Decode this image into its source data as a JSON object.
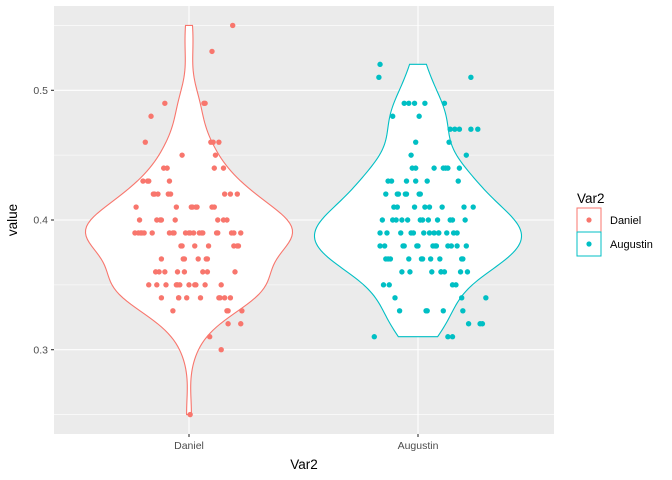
{
  "chart_data": {
    "type": "violin+jitter",
    "xlabel": "Var2",
    "ylabel": "value",
    "categories": [
      "Daniel",
      "Augustin"
    ],
    "y_ticks": [
      0.3,
      0.4,
      0.5
    ],
    "y_tick_labels": [
      "0.3",
      "0.4",
      "0.5"
    ],
    "ylim": [
      0.235,
      0.565
    ],
    "legend": {
      "title": "Var2",
      "placement": "right",
      "entries": [
        "Daniel",
        "Augustin"
      ]
    },
    "colors": {
      "Daniel": "#F8766D",
      "Augustin": "#00BFC4",
      "panel_background": "#EBEBEB",
      "grid": "#FFFFFF"
    },
    "series": [
      {
        "name": "Daniel",
        "violin_range": [
          0.25,
          0.55
        ],
        "points": [
          [
            -0.47,
            0.39
          ],
          [
            -0.42,
            0.39
          ],
          [
            -0.4,
            0.43
          ],
          [
            -0.36,
            0.43
          ],
          [
            -0.33,
            0.48
          ],
          [
            -0.3,
            0.42
          ],
          [
            -0.27,
            0.42
          ],
          [
            -0.24,
            0.4
          ],
          [
            -0.21,
            0.49
          ],
          [
            -0.19,
            0.44
          ],
          [
            -0.17,
            0.43
          ],
          [
            -0.14,
            0.39
          ],
          [
            -0.12,
            0.4
          ],
          [
            -0.1,
            0.35
          ],
          [
            -0.08,
            0.35
          ],
          [
            -0.06,
            0.45
          ],
          [
            -0.03,
            0.39
          ],
          [
            0.0,
            0.39
          ],
          [
            0.02,
            0.41
          ],
          [
            0.05,
            0.38
          ],
          [
            0.07,
            0.41
          ],
          [
            0.1,
            0.34
          ],
          [
            0.13,
            0.49
          ],
          [
            0.15,
            0.37
          ],
          [
            0.18,
            0.31
          ],
          [
            0.21,
            0.46
          ],
          [
            0.24,
            0.39
          ],
          [
            0.26,
            0.34
          ],
          [
            0.28,
            0.3
          ],
          [
            0.31,
            0.42
          ],
          [
            0.34,
            0.33
          ],
          [
            0.37,
            0.39
          ],
          [
            0.4,
            0.36
          ],
          [
            0.43,
            0.38
          ],
          [
            0.46,
            0.33
          ],
          [
            -0.46,
            0.41
          ],
          [
            -0.43,
            0.4
          ],
          [
            -0.41,
            0.39
          ],
          [
            -0.38,
            0.46
          ],
          [
            -0.35,
            0.43
          ],
          [
            -0.32,
            0.39
          ],
          [
            -0.29,
            0.36
          ],
          [
            -0.26,
            0.36
          ],
          [
            -0.24,
            0.37
          ],
          [
            -0.22,
            0.44
          ],
          [
            -0.2,
            0.35
          ],
          [
            -0.18,
            0.42
          ],
          [
            -0.16,
            0.42
          ],
          [
            -0.13,
            0.39
          ],
          [
            -0.11,
            0.35
          ],
          [
            -0.09,
            0.34
          ],
          [
            -0.07,
            0.38
          ],
          [
            -0.05,
            0.37
          ],
          [
            -0.02,
            0.34
          ],
          [
            0.01,
            0.39
          ],
          [
            0.03,
            0.41
          ],
          [
            0.06,
            0.35
          ],
          [
            0.08,
            0.37
          ],
          [
            0.11,
            0.39
          ],
          [
            0.14,
            0.49
          ],
          [
            0.16,
            0.37
          ],
          [
            0.19,
            0.46
          ],
          [
            0.22,
            0.44
          ],
          [
            0.25,
            0.4
          ],
          [
            0.27,
            0.34
          ],
          [
            0.3,
            0.44
          ],
          [
            0.33,
            0.33
          ],
          [
            0.36,
            0.34
          ],
          [
            0.39,
            0.39
          ],
          [
            0.42,
            0.42
          ],
          [
            0.45,
            0.32
          ],
          [
            -0.44,
            0.39
          ],
          [
            -0.39,
            0.39
          ],
          [
            -0.35,
            0.35
          ],
          [
            -0.31,
            0.42
          ],
          [
            -0.28,
            0.4
          ],
          [
            -0.25,
            0.4
          ],
          [
            -0.21,
            0.36
          ],
          [
            -0.17,
            0.39
          ],
          [
            -0.14,
            0.33
          ],
          [
            -0.11,
            0.41
          ],
          [
            -0.09,
            0.34
          ],
          [
            -0.06,
            0.38
          ],
          [
            -0.04,
            0.36
          ],
          [
            0.0,
            0.35
          ],
          [
            0.04,
            0.39
          ],
          [
            0.06,
            0.41
          ],
          [
            0.09,
            0.39
          ],
          [
            0.12,
            0.39
          ],
          [
            0.14,
            0.35
          ],
          [
            0.17,
            0.38
          ],
          [
            0.2,
            0.41
          ],
          [
            0.23,
            0.45
          ],
          [
            0.25,
            0.39
          ],
          [
            0.28,
            0.35
          ],
          [
            0.3,
            0.4
          ],
          [
            0.33,
            0.4
          ],
          [
            0.36,
            0.42
          ],
          [
            0.39,
            0.38
          ],
          [
            0.42,
            0.38
          ],
          [
            0.45,
            0.39
          ],
          [
            -0.28,
            0.35
          ],
          [
            -0.24,
            0.34
          ],
          [
            -0.1,
            0.36
          ],
          [
            -0.04,
            0.37
          ],
          [
            0.05,
            0.35
          ],
          [
            0.12,
            0.36
          ],
          [
            0.16,
            0.36
          ],
          [
            0.22,
            0.41
          ],
          [
            0.26,
            0.46
          ],
          [
            0.31,
            0.34
          ],
          [
            0.34,
            0.32
          ],
          [
            0.2,
            0.53
          ],
          [
            0.38,
            0.55
          ],
          [
            0.01,
            0.25
          ]
        ]
      },
      {
        "name": "Augustin",
        "violin_range": [
          0.31,
          0.52
        ],
        "points": [
          [
            -0.38,
            0.31
          ],
          [
            -0.33,
            0.38
          ],
          [
            -0.3,
            0.35
          ],
          [
            -0.28,
            0.37
          ],
          [
            -0.26,
            0.43
          ],
          [
            -0.24,
            0.37
          ],
          [
            -0.22,
            0.48
          ],
          [
            -0.2,
            0.34
          ],
          [
            -0.18,
            0.41
          ],
          [
            -0.16,
            0.33
          ],
          [
            -0.14,
            0.4
          ],
          [
            -0.12,
            0.38
          ],
          [
            -0.1,
            0.43
          ],
          [
            -0.08,
            0.37
          ],
          [
            -0.06,
            0.45
          ],
          [
            -0.04,
            0.39
          ],
          [
            -0.02,
            0.44
          ],
          [
            0.0,
            0.38
          ],
          [
            0.02,
            0.42
          ],
          [
            0.04,
            0.37
          ],
          [
            0.06,
            0.41
          ],
          [
            0.08,
            0.43
          ],
          [
            0.1,
            0.39
          ],
          [
            0.12,
            0.36
          ],
          [
            0.14,
            0.44
          ],
          [
            0.16,
            0.38
          ],
          [
            0.18,
            0.39
          ],
          [
            0.2,
            0.36
          ],
          [
            0.22,
            0.33
          ],
          [
            0.24,
            0.44
          ],
          [
            0.26,
            0.38
          ],
          [
            0.28,
            0.4
          ],
          [
            0.3,
            0.35
          ],
          [
            0.32,
            0.47
          ],
          [
            0.34,
            0.39
          ],
          [
            0.36,
            0.44
          ],
          [
            0.38,
            0.37
          ],
          [
            0.4,
            0.41
          ],
          [
            0.42,
            0.45
          ],
          [
            0.44,
            0.32
          ],
          [
            -0.33,
            0.39
          ],
          [
            -0.29,
            0.38
          ],
          [
            -0.27,
            0.39
          ],
          [
            -0.25,
            0.35
          ],
          [
            -0.23,
            0.43
          ],
          [
            -0.21,
            0.41
          ],
          [
            -0.19,
            0.4
          ],
          [
            -0.17,
            0.42
          ],
          [
            -0.15,
            0.39
          ],
          [
            -0.13,
            0.38
          ],
          [
            -0.11,
            0.42
          ],
          [
            -0.09,
            0.4
          ],
          [
            -0.07,
            0.36
          ],
          [
            -0.05,
            0.44
          ],
          [
            -0.03,
            0.41
          ],
          [
            -0.01,
            0.38
          ],
          [
            0.01,
            0.42
          ],
          [
            0.03,
            0.37
          ],
          [
            0.05,
            0.39
          ],
          [
            0.07,
            0.33
          ],
          [
            0.09,
            0.4
          ],
          [
            0.11,
            0.37
          ],
          [
            0.13,
            0.38
          ],
          [
            0.15,
            0.38
          ],
          [
            0.17,
            0.4
          ],
          [
            0.19,
            0.37
          ],
          [
            0.21,
            0.41
          ],
          [
            0.23,
            0.36
          ],
          [
            0.25,
            0.39
          ],
          [
            0.27,
            0.46
          ],
          [
            0.29,
            0.38
          ],
          [
            0.31,
            0.39
          ],
          [
            0.33,
            0.35
          ],
          [
            0.35,
            0.43
          ],
          [
            0.37,
            0.36
          ],
          [
            0.39,
            0.33
          ],
          [
            0.41,
            0.4
          ],
          [
            0.43,
            0.36
          ],
          [
            -0.31,
            0.4
          ],
          [
            -0.28,
            0.42
          ],
          [
            -0.26,
            0.37
          ],
          [
            -0.22,
            0.4
          ],
          [
            -0.18,
            0.42
          ],
          [
            -0.14,
            0.36
          ],
          [
            -0.1,
            0.42
          ],
          [
            -0.06,
            0.39
          ],
          [
            -0.02,
            0.43
          ],
          [
            0.02,
            0.4
          ],
          [
            0.06,
            0.49
          ],
          [
            0.1,
            0.41
          ],
          [
            0.14,
            0.39
          ],
          [
            0.18,
            0.39
          ],
          [
            0.22,
            0.44
          ],
          [
            0.26,
            0.44
          ],
          [
            0.3,
            0.4
          ],
          [
            0.34,
            0.38
          ],
          [
            0.38,
            0.34
          ],
          [
            0.42,
            0.38
          ],
          [
            -0.12,
            0.49
          ],
          [
            -0.08,
            0.49
          ],
          [
            -0.03,
            0.49
          ],
          [
            0.01,
            0.48
          ],
          [
            0.04,
            0.4
          ],
          [
            0.08,
            0.33
          ],
          [
            0.2,
            0.36
          ],
          [
            0.23,
            0.49
          ],
          [
            0.26,
            0.31
          ],
          [
            0.3,
            0.31
          ],
          [
            0.36,
            0.47
          ],
          [
            0.39,
            0.37
          ],
          [
            0.46,
            0.47
          ],
          [
            0.48,
            0.41
          ],
          [
            -0.34,
            0.51
          ],
          [
            -0.33,
            0.52
          ],
          [
            -0.02,
            0.46
          ],
          [
            0.28,
            0.47
          ],
          [
            0.46,
            0.51
          ],
          [
            0.52,
            0.47
          ],
          [
            0.54,
            0.32
          ],
          [
            0.56,
            0.32
          ],
          [
            0.59,
            0.34
          ]
        ]
      }
    ]
  }
}
